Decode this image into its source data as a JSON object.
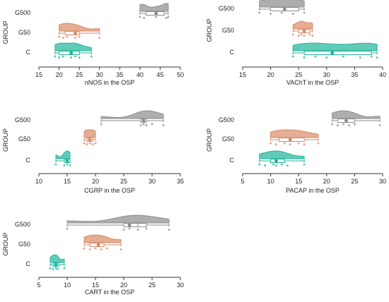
{
  "colors": {
    "C": "#1fb59a",
    "G50": "#d98a67",
    "G500": "#8c8c8c",
    "axis": "#333333"
  },
  "group_label": "GROUP",
  "chart_data": [
    {
      "type": "raincloud",
      "xlabel": "nNOS in the OSP",
      "ylabel": "GROUP",
      "xlim": [
        15,
        50
      ],
      "xticks": [
        15,
        20,
        25,
        30,
        35,
        40,
        45,
        50
      ],
      "categories": [
        "G500",
        "G50",
        "C"
      ],
      "series": [
        {
          "name": "G500",
          "min": 40,
          "q1": 41.5,
          "median": 44,
          "q3": 46,
          "max": 47,
          "mean": 44,
          "points": [
            40,
            41,
            44,
            46.5,
            47
          ]
        },
        {
          "name": "G50",
          "min": 20,
          "q1": 21.5,
          "median": 24,
          "q3": 25,
          "max": 30,
          "mean": 24,
          "points": [
            20,
            21,
            22,
            24,
            25,
            30
          ]
        },
        {
          "name": "C",
          "min": 19,
          "q1": 20,
          "median": 23,
          "q3": 25,
          "max": 28,
          "mean": 23,
          "points": [
            19,
            20,
            21,
            23,
            24,
            25,
            28
          ]
        }
      ]
    },
    {
      "type": "raincloud",
      "xlabel": "VAChT in the OSP",
      "ylabel": "GROUP",
      "xlim": [
        15,
        40
      ],
      "xticks": [
        15,
        20,
        25,
        30,
        35,
        40
      ],
      "categories": [
        "G500",
        "G50",
        "C"
      ],
      "series": [
        {
          "name": "G500",
          "min": 18,
          "q1": 20,
          "median": 22.5,
          "q3": 25,
          "max": 26,
          "mean": 22.5,
          "points": [
            18,
            20,
            22,
            24,
            26
          ]
        },
        {
          "name": "G50",
          "min": 24,
          "q1": 25,
          "median": 26,
          "q3": 27,
          "max": 27.5,
          "mean": 26,
          "points": [
            24,
            25,
            25.5,
            26,
            27,
            27.5
          ]
        },
        {
          "name": "C",
          "min": 24,
          "q1": 26,
          "median": 31,
          "q3": 38,
          "max": 39,
          "mean": 31,
          "points": [
            24,
            26,
            28,
            30,
            33,
            36,
            38,
            39
          ]
        }
      ]
    },
    {
      "type": "raincloud",
      "xlabel": "CGRP in the OSP",
      "ylabel": "GROUP",
      "xlim": [
        10,
        35
      ],
      "xticks": [
        10,
        15,
        20,
        25,
        30,
        35
      ],
      "categories": [
        "G500",
        "G50",
        "C"
      ],
      "series": [
        {
          "name": "G500",
          "min": 21,
          "q1": 28,
          "median": 28.5,
          "q3": 29,
          "max": 32,
          "mean": 28.5,
          "points": [
            21,
            28,
            28.5,
            29,
            30,
            32
          ]
        },
        {
          "name": "G50",
          "min": 18,
          "q1": 18.5,
          "median": 19,
          "q3": 19.5,
          "max": 20,
          "mean": 19,
          "points": [
            18,
            18.5,
            19,
            19.5,
            20
          ]
        },
        {
          "name": "C",
          "min": 13,
          "q1": 14.5,
          "median": 15,
          "q3": 15.5,
          "max": 15.5,
          "mean": 15,
          "points": [
            13,
            14.5,
            15,
            15.5
          ]
        }
      ]
    },
    {
      "type": "raincloud",
      "xlabel": "PACAP in the OSP",
      "ylabel": "GROUP",
      "xlim": [
        5,
        30
      ],
      "xticks": [
        5,
        10,
        15,
        20,
        25,
        30
      ],
      "categories": [
        "G500",
        "G50",
        "C"
      ],
      "series": [
        {
          "name": "G500",
          "min": 21,
          "q1": 22,
          "median": 23.5,
          "q3": 25,
          "max": 29.5,
          "mean": 23.5,
          "points": [
            21,
            22,
            23,
            24,
            25,
            29.5
          ]
        },
        {
          "name": "G50",
          "min": 10,
          "q1": 11.5,
          "median": 13.5,
          "q3": 16,
          "max": 18.5,
          "mean": 13.5,
          "points": [
            10,
            11,
            12.5,
            13.5,
            15,
            16,
            18.5
          ]
        },
        {
          "name": "C",
          "min": 8,
          "q1": 10,
          "median": 11,
          "q3": 12.5,
          "max": 16,
          "mean": 11,
          "points": [
            8,
            9,
            10.5,
            11,
            12,
            13,
            16
          ]
        }
      ]
    },
    {
      "type": "raincloud",
      "xlabel": "CART in the OSP",
      "ylabel": "GROUP",
      "xlim": [
        5,
        30
      ],
      "xticks": [
        5,
        10,
        15,
        20,
        25,
        30
      ],
      "categories": [
        "G500",
        "G50",
        "C"
      ],
      "series": [
        {
          "name": "G500",
          "min": 10,
          "q1": 20,
          "median": 22.5,
          "q3": 24,
          "max": 28,
          "mean": 21,
          "points": [
            10,
            20,
            21,
            22.5,
            24,
            28
          ]
        },
        {
          "name": "G50",
          "min": 13,
          "q1": 14,
          "median": 15.5,
          "q3": 16.5,
          "max": 19.5,
          "mean": 15.5,
          "points": [
            13,
            14,
            15,
            16,
            17,
            19.5
          ]
        },
        {
          "name": "C",
          "min": 7,
          "q1": 7.5,
          "median": 8,
          "q3": 8.5,
          "max": 9.5,
          "mean": 8,
          "points": [
            7,
            7.5,
            8,
            8.3,
            9.5
          ]
        }
      ]
    }
  ]
}
